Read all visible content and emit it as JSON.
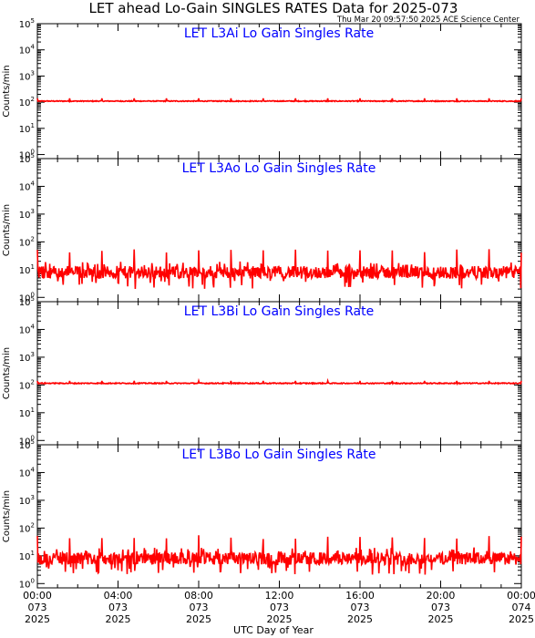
{
  "title": "LET ahead Lo-Gain SINGLES RATES Data for 2025-073",
  "subtitle": "Thu Mar 20 09:57:50 2025 ACE Science Center",
  "xlabel": "UTC Day of Year",
  "colors": {
    "series": "#ff0000",
    "panel_title": "#0000ff",
    "axes": "#000000"
  },
  "chart_data": [
    {
      "type": "line",
      "title": "LET L3Ai Lo Gain Singles Rate",
      "ylabel": "Counts/min",
      "yscale": "log",
      "ylim": [
        0.7,
        100000
      ],
      "yticks": [
        "10^0",
        "10^1",
        "10^2",
        "10^3",
        "10^4",
        "10^5"
      ],
      "xlim": [
        "2025-073 00:00",
        "2025-074 00:00"
      ],
      "series": [
        {
          "baseline": 110,
          "spike_peak": 140,
          "spike_interval_hours": 1.6
        }
      ]
    },
    {
      "type": "line",
      "title": "LET L3Ao Lo Gain Singles Rate",
      "ylabel": "Counts/min",
      "yscale": "log",
      "ylim": [
        0.7,
        100000
      ],
      "yticks": [
        "10^0",
        "10^1",
        "10^2",
        "10^3",
        "10^4",
        "10^5"
      ],
      "xlim": [
        "2025-073 00:00",
        "2025-074 00:00"
      ],
      "series": [
        {
          "baseline": 8,
          "noise_range": [
            2,
            20
          ],
          "spike_peak": 50,
          "spike_interval_hours": 1.6
        }
      ]
    },
    {
      "type": "line",
      "title": "LET L3Bi Lo Gain Singles Rate",
      "ylabel": "Counts/min",
      "yscale": "log",
      "ylim": [
        0.7,
        100000
      ],
      "yticks": [
        "10^0",
        "10^1",
        "10^2",
        "10^3",
        "10^4",
        "10^5"
      ],
      "xlim": [
        "2025-073 00:00",
        "2025-074 00:00"
      ],
      "series": [
        {
          "baseline": 115,
          "spike_peak": 140,
          "spike_interval_hours": 1.6
        }
      ]
    },
    {
      "type": "line",
      "title": "LET L3Bo Lo Gain Singles Rate",
      "ylabel": "Counts/min",
      "yscale": "log",
      "ylim": [
        0.7,
        100000
      ],
      "yticks": [
        "10^0",
        "10^1",
        "10^2",
        "10^3",
        "10^4",
        "10^5"
      ],
      "xlim": [
        "2025-073 00:00",
        "2025-074 00:00"
      ],
      "series": [
        {
          "baseline": 8,
          "noise_range": [
            2,
            20
          ],
          "spike_peak": 50,
          "spike_interval_hours": 1.6
        }
      ]
    }
  ],
  "xticks": [
    {
      "time": "00:00",
      "doy": "073",
      "year": "2025"
    },
    {
      "time": "04:00",
      "doy": "073",
      "year": "2025"
    },
    {
      "time": "08:00",
      "doy": "073",
      "year": "2025"
    },
    {
      "time": "12:00",
      "doy": "073",
      "year": "2025"
    },
    {
      "time": "16:00",
      "doy": "073",
      "year": "2025"
    },
    {
      "time": "20:00",
      "doy": "073",
      "year": "2025"
    },
    {
      "time": "00:00",
      "doy": "074",
      "year": "2025"
    }
  ]
}
